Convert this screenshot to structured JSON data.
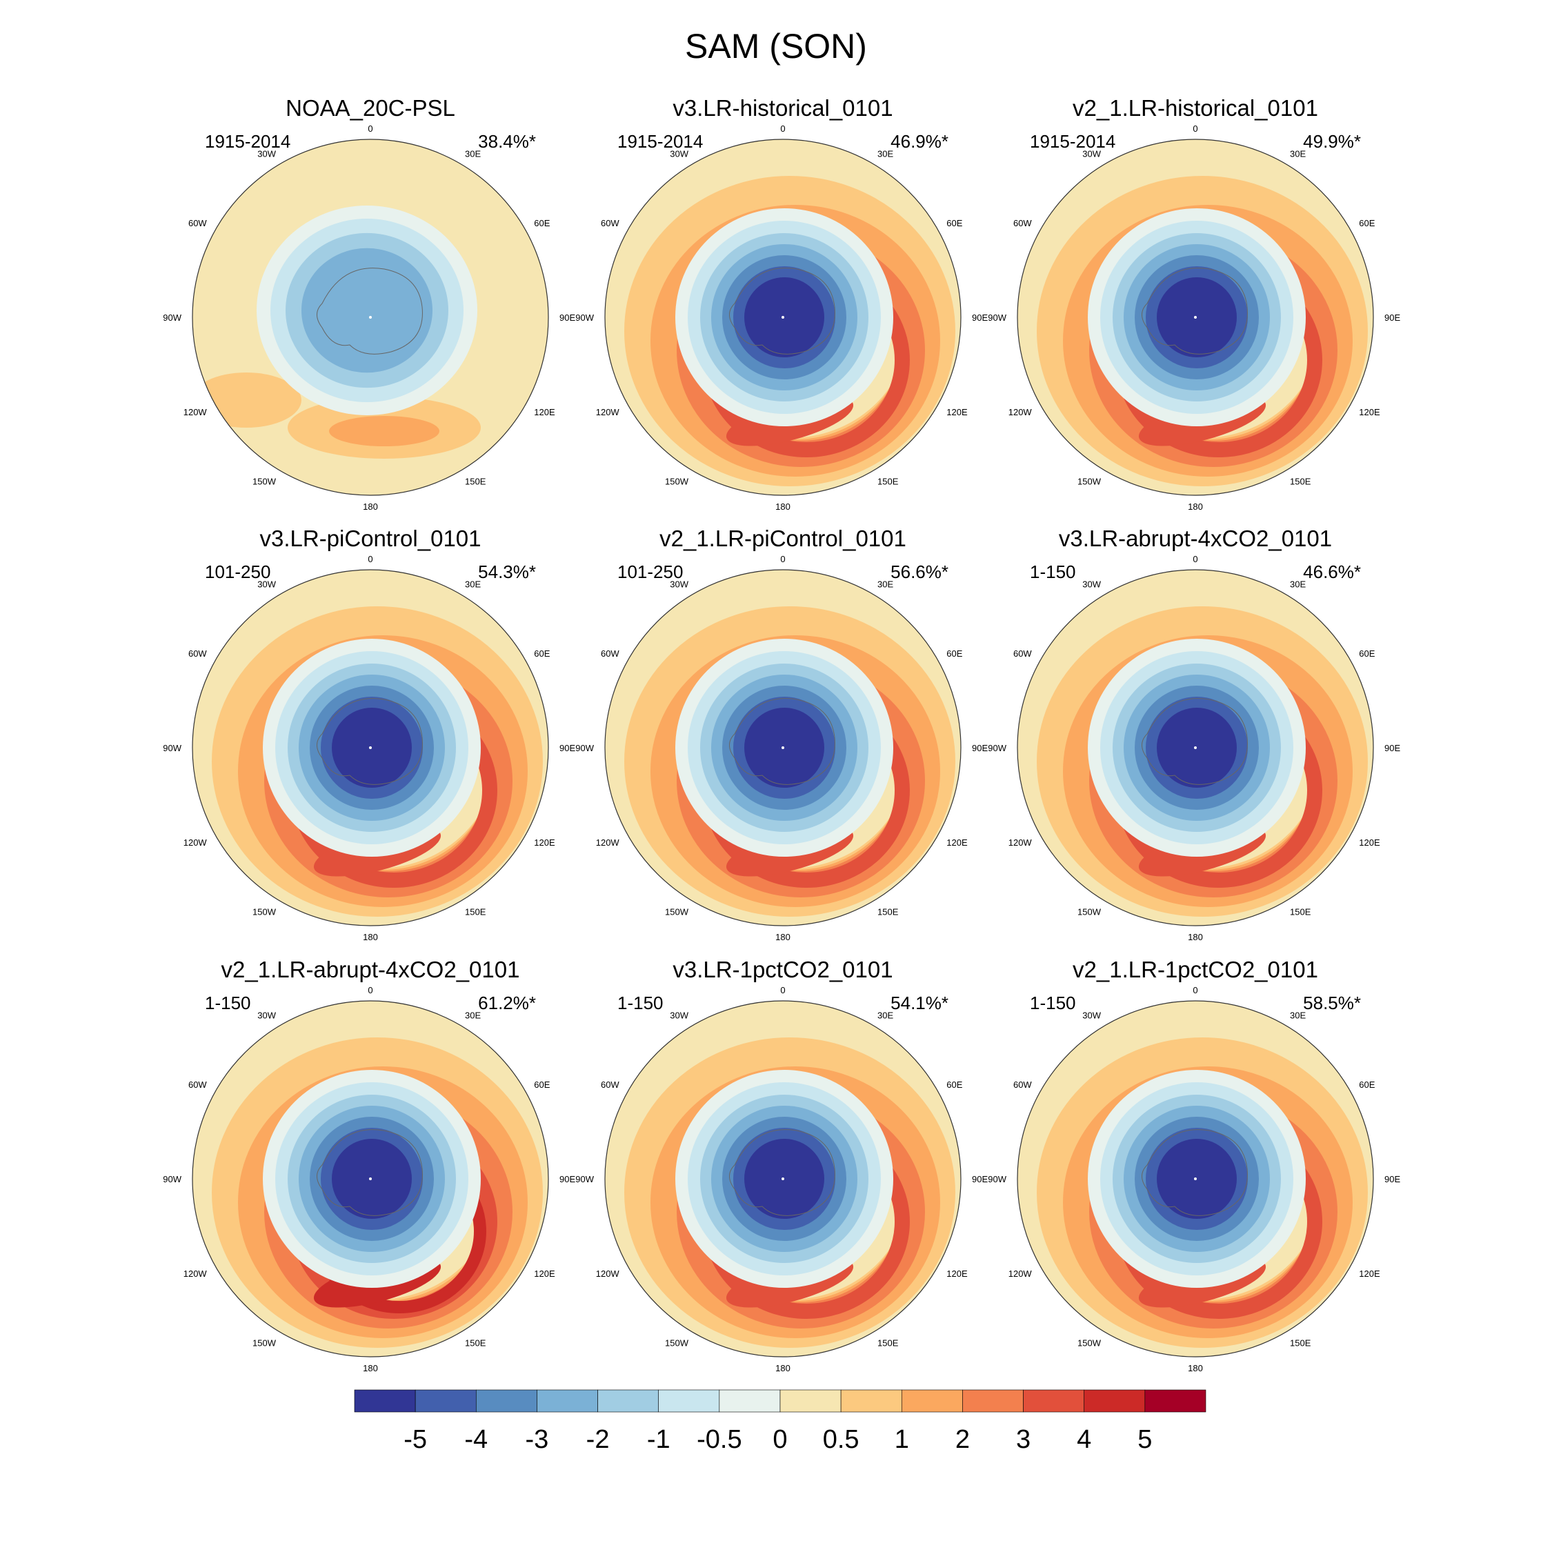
{
  "chart_data": {
    "type": "polar-contour-map",
    "title": "SAM (SON)",
    "longitude_labels": [
      "0",
      "30E",
      "60E",
      "90E",
      "120E",
      "150E",
      "180",
      "150W",
      "120W",
      "90W",
      "60W",
      "30W"
    ],
    "colorbar": {
      "levels": [
        "-5",
        "-4",
        "-3",
        "-2",
        "-1",
        "-0.5",
        "0",
        "0.5",
        "1",
        "2",
        "3",
        "4",
        "5"
      ],
      "colors": [
        "#313695",
        "#4260ad",
        "#588cc0",
        "#7bb1d6",
        "#a1cde3",
        "#c9e6ef",
        "#e8f2ee",
        "#f6e6b2",
        "#fcc97f",
        "#fba85f",
        "#f3804e",
        "#e2503b",
        "#cc2a27",
        "#a50026"
      ]
    },
    "panels": [
      {
        "title": "NOAA_20C-PSL",
        "period": "1915-2014",
        "variance": "38.4%*",
        "min_level": "-3",
        "max_level": "2"
      },
      {
        "title": "v3.LR-historical_0101",
        "period": "1915-2014",
        "variance": "46.9%*",
        "min_level": "-5",
        "max_level": "3"
      },
      {
        "title": "v2_1.LR-historical_0101",
        "period": "1915-2014",
        "variance": "49.9%*",
        "min_level": "-5",
        "max_level": "3"
      },
      {
        "title": "v3.LR-piControl_0101",
        "period": "101-250",
        "variance": "54.3%*",
        "min_level": "-5",
        "max_level": "3"
      },
      {
        "title": "v2_1.LR-piControl_0101",
        "period": "101-250",
        "variance": "56.6%*",
        "min_level": "-5",
        "max_level": "3"
      },
      {
        "title": "v3.LR-abrupt-4xCO2_0101",
        "period": "1-150",
        "variance": "46.6%*",
        "min_level": "-5",
        "max_level": "3"
      },
      {
        "title": "v2_1.LR-abrupt-4xCO2_0101",
        "period": "1-150",
        "variance": "61.2%*",
        "min_level": "-5",
        "max_level": "4"
      },
      {
        "title": "v3.LR-1pctCO2_0101",
        "period": "1-150",
        "variance": "54.1%*",
        "min_level": "-5",
        "max_level": "3"
      },
      {
        "title": "v2_1.LR-1pctCO2_0101",
        "period": "1-150",
        "variance": "58.5%*",
        "min_level": "-5",
        "max_level": "3"
      }
    ]
  }
}
